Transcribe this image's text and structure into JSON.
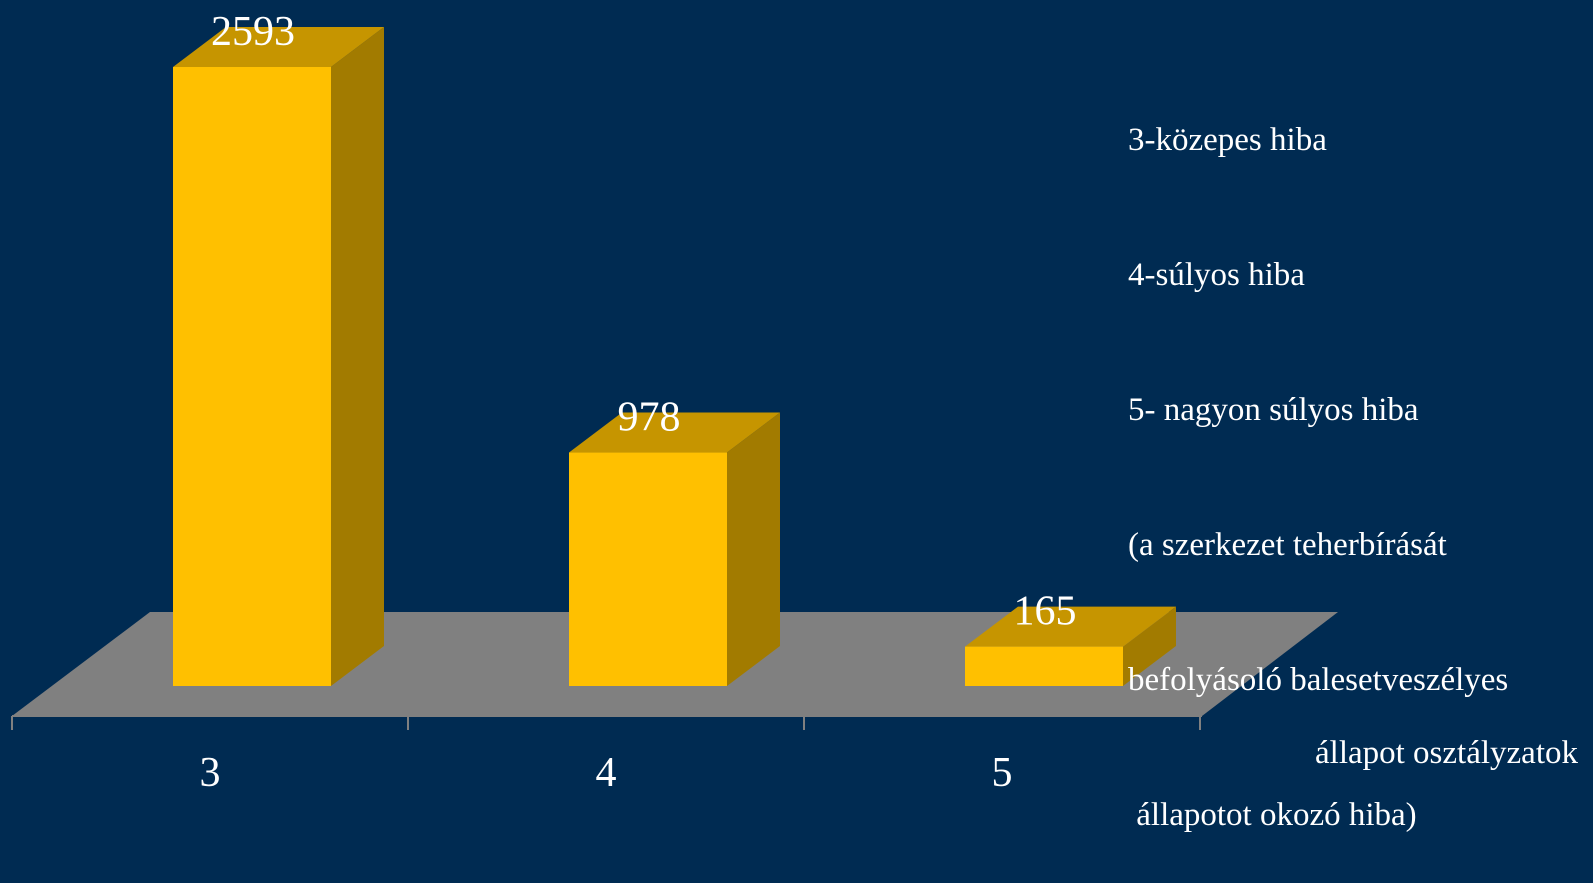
{
  "chart_data": {
    "type": "bar",
    "categories": [
      "3",
      "4",
      "5"
    ],
    "values": [
      2593,
      978,
      165
    ],
    "xlabel": "állapot osztályzatok",
    "ylabel": "",
    "ylim": [
      0,
      2593
    ],
    "grid": false,
    "three_d": true,
    "colors": {
      "background": "#002b52",
      "bar_front": "#ffc000",
      "bar_top": "#c69500",
      "bar_side": "#a27b00",
      "floor": "#808080",
      "text": "#ffffff"
    }
  },
  "legend_text": [
    "3-közepes hiba",
    "4-súlyos hiba",
    "5- nagyon súlyos hiba",
    "(a szerkezet teherbírását",
    "befolyásoló balesetveszélyes",
    " állapotot okozó hiba)"
  ]
}
